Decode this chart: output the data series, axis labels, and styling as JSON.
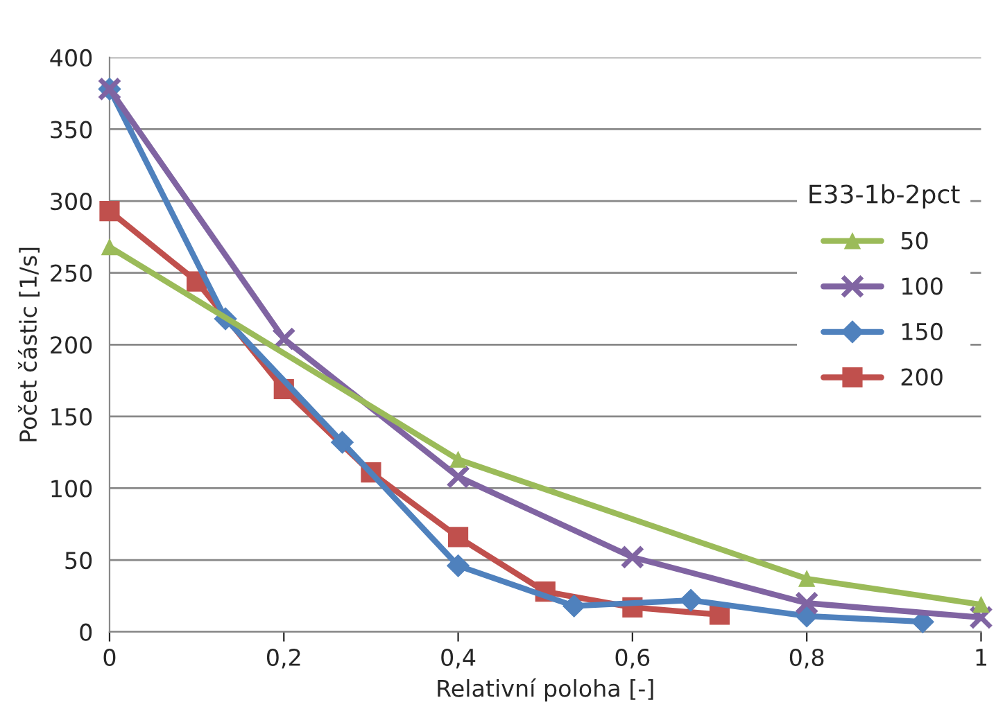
{
  "chart_data": {
    "type": "line",
    "xlabel": "Relativní poloha [-]",
    "ylabel": "Počet částic [1/s]",
    "legend_title": "E33-1b-2pct",
    "xlim": [
      0,
      1
    ],
    "xticks": [
      0,
      {
        "value": 0.2,
        "label": "0,2"
      },
      {
        "value": 0.4,
        "label": "0,4"
      },
      {
        "value": 0.6,
        "label": "0,6"
      },
      {
        "value": 0.8,
        "label": "0,8"
      },
      1
    ],
    "ylim": [
      0,
      400
    ],
    "yticks": [
      0,
      50,
      100,
      150,
      200,
      250,
      300,
      350,
      400
    ],
    "grid": "y",
    "legend": "right",
    "series": [
      {
        "name": "50",
        "color": "#9bbb59",
        "marker": "triangle",
        "x": [
          0,
          0.4,
          0.8,
          1
        ],
        "values": [
          268,
          120,
          37,
          19
        ]
      },
      {
        "name": "100",
        "color": "#8064a2",
        "marker": "cross",
        "x": [
          0,
          0.2,
          0.4,
          0.6,
          0.8,
          1
        ],
        "values": [
          378,
          204,
          108,
          52,
          20,
          10
        ]
      },
      {
        "name": "150",
        "color": "#4f81bd",
        "marker": "diamond",
        "x": [
          0,
          0.133,
          0.267,
          0.4,
          0.533,
          0.667,
          0.8,
          0.933
        ],
        "values": [
          378,
          218,
          132,
          46,
          18,
          22,
          11,
          7
        ]
      },
      {
        "name": "200",
        "color": "#c0504d",
        "marker": "square",
        "x": [
          0,
          0.1,
          0.2,
          0.3,
          0.4,
          0.5,
          0.6,
          0.7
        ],
        "values": [
          293,
          244,
          169,
          111,
          66,
          28,
          17,
          12
        ]
      }
    ]
  }
}
